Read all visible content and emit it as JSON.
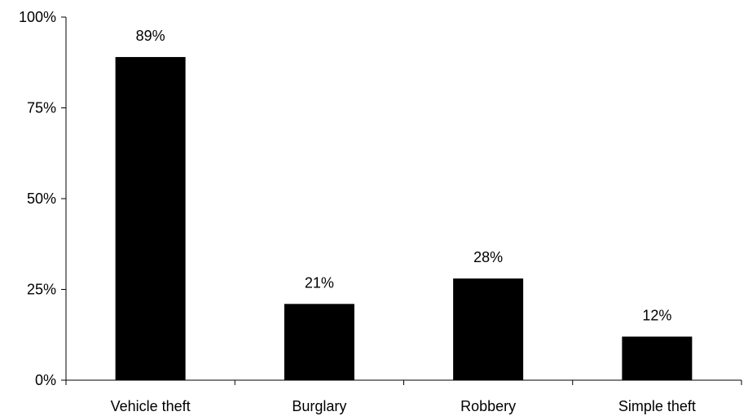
{
  "chart_data": {
    "type": "bar",
    "title": "",
    "xlabel": "",
    "ylabel": "",
    "categories": [
      "Vehicle theft",
      "Burglary",
      "Robbery",
      "Simple theft"
    ],
    "values": [
      89,
      21,
      28,
      12
    ],
    "data_labels": [
      "89%",
      "21%",
      "28%",
      "12%"
    ],
    "ylim": [
      0,
      100
    ],
    "y_ticks": [
      0,
      25,
      50,
      75,
      100
    ],
    "y_tick_labels": [
      "0%",
      "25%",
      "50%",
      "75%",
      "100%"
    ],
    "grid": false,
    "legend": "none",
    "bar_color": "#000000",
    "axis_color": "#000000"
  }
}
